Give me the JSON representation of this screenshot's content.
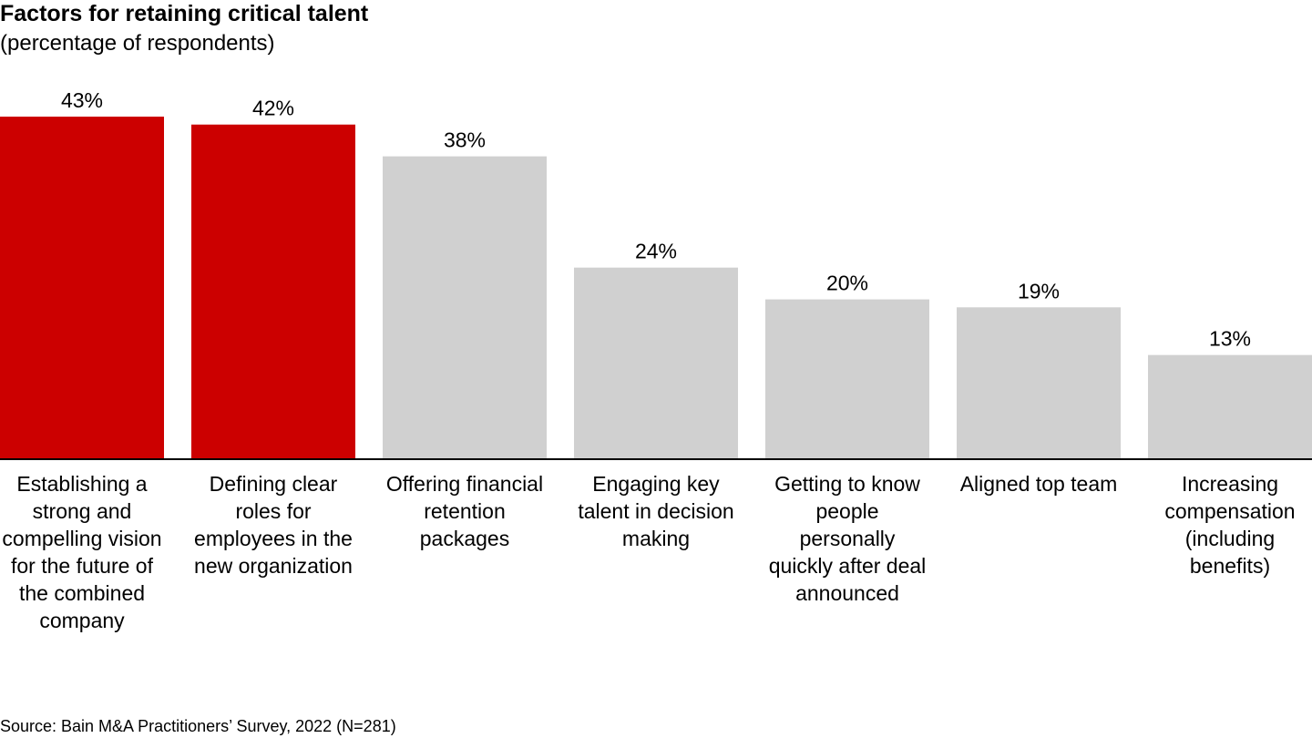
{
  "chart_data": {
    "type": "bar",
    "title": "Factors for retaining critical talent",
    "subtitle": "(percentage of respondents)",
    "categories": [
      "Establishing a strong and compelling vision for the future of the combined company",
      "Defining clear roles for employees in the new organization",
      "Offering financial retention packages",
      "Engaging key talent in decision making",
      "Getting to know people personally quickly after deal announced",
      "Aligned top team",
      "Increasing compensation (including benefits)"
    ],
    "values": [
      43,
      42,
      38,
      24,
      20,
      19,
      13
    ],
    "value_labels": [
      "43%",
      "42%",
      "38%",
      "24%",
      "20%",
      "19%",
      "13%"
    ],
    "colors": [
      "#cc0000",
      "#cc0000",
      "#d0d0d0",
      "#d0d0d0",
      "#d0d0d0",
      "#d0d0d0",
      "#d0d0d0"
    ],
    "source": "Source: Bain M&A Practitioners’ Survey, 2022 (N=281)"
  }
}
